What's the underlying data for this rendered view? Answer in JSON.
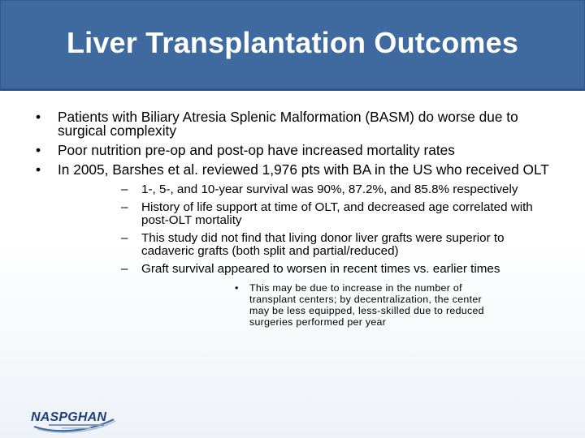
{
  "slide": {
    "title": "Liver Transplantation Outcomes",
    "bullets": [
      "Patients with Biliary Atresia Splenic Malformation (BASM) do worse due to surgical complexity",
      "Poor nutrition pre-op and post-op have increased mortality rates",
      "In 2005, Barshes et al. reviewed 1,976 pts with BA in the US who received OLT"
    ],
    "subbullets": [
      "1-, 5-, and 10-year survival was 90%, 87.2%, and 85.8% respectively",
      "History of life support at time of OLT, and decreased age correlated with post-OLT mortality",
      "This study did not find that living donor liver grafts were superior to cadaveric grafts (both split and partial/reduced)",
      "Graft survival appeared to worsen in recent times vs. earlier times"
    ],
    "subsubbullets": [
      "This may be due to increase in the number of transplant centers; by decentralization, the center may be less equipped, less-skilled due to reduced surgeries performed per year"
    ],
    "bullet_symbol": "•",
    "dash_symbol": "–"
  },
  "logo": {
    "text": "NASPGHAN",
    "icon": "naspghan-logo-icon",
    "colors": {
      "primary": "#1f3f7a",
      "swoosh": "#3f6aa0"
    }
  },
  "colors": {
    "header": "#3f6aa0",
    "title_text": "#ffffff",
    "body_text": "#000000"
  }
}
